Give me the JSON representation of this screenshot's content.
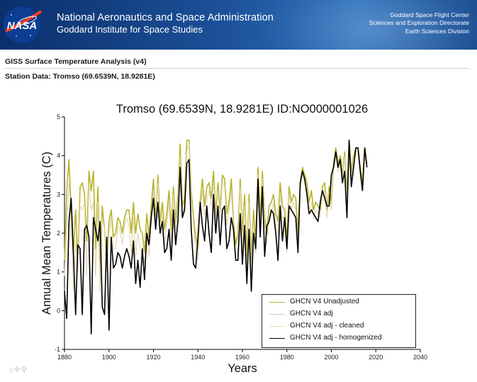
{
  "header": {
    "agency": "National Aeronautics and Space Administration",
    "institute": "Goddard Institute for Space Studies",
    "right_lines": [
      "Goddard Space Flight Center",
      "Sciences and Exploration Directorate",
      "Earth Sciences Division"
    ],
    "logo_text": "NASA"
  },
  "page": {
    "heading": "GISS Surface Temperature Analysis (v4)",
    "station_line": "Station Data: Tromso (69.6539N, 18.9281E)"
  },
  "toolbar": {
    "icons": [
      "home-icon",
      "move-icon",
      "zoom-icon"
    ]
  },
  "chart_data": {
    "type": "line",
    "title": "Tromso (69.6539N, 18.9281E) ID:NO000001026",
    "xlabel": "Years",
    "ylabel": "Annual Mean Temperatures (C)",
    "xlim": [
      1880,
      2040
    ],
    "ylim": [
      -1,
      5
    ],
    "xticks": [
      "1880",
      "1900",
      "1920",
      "1940",
      "1960",
      "1980",
      "2000",
      "2020",
      "2040"
    ],
    "yticks": [
      "-1",
      "0",
      "1",
      "2",
      "3",
      "4",
      "5"
    ],
    "colors": {
      "unadjusted": "#b8b22a",
      "adj": "#c9c9e8",
      "cleaned": "#e6d9a8",
      "homogenized": "#000000"
    },
    "series": [
      {
        "name": "GHCN V4 Unadjusted",
        "color": "#b8b22a",
        "x_start": 1880,
        "values": [
          1.3,
          3.1,
          3.9,
          2.6,
          1.5,
          2.6,
          1.2,
          3.2,
          3.3,
          3.0,
          1.8,
          3.6,
          3.1,
          3.6,
          1.6,
          3.2,
          1.0,
          2.7,
          2.1,
          1.3,
          2.3,
          2.6,
          1.9,
          2.0,
          2.4,
          2.3,
          2.0,
          2.4,
          2.6,
          2.6,
          2.0,
          2.8,
          2.0,
          2.5,
          2.1,
          2.0,
          1.5,
          2.5,
          1.9,
          2.7,
          3.4,
          2.3,
          3.5,
          2.3,
          2.8,
          2.1,
          2.5,
          3.1,
          2.1,
          3.2,
          2.3,
          3.0,
          4.3,
          2.7,
          2.9,
          4.4,
          4.4,
          3.1,
          2.4,
          1.9,
          1.6,
          2.8,
          3.4,
          2.7,
          3.2,
          3.3,
          2.9,
          3.6,
          2.5,
          3.3,
          2.6,
          3.5,
          3.4,
          2.5,
          2.8,
          3.4,
          2.3,
          1.7,
          2.0,
          3.4,
          2.0,
          3.0,
          1.4,
          3.0,
          1.3,
          2.6,
          1.8,
          3.7,
          2.4,
          3.6,
          2.4,
          2.0,
          2.7,
          2.8,
          3.0,
          2.5,
          2.3,
          3.3,
          2.7,
          2.6,
          1.8,
          3.2,
          2.8,
          3.0,
          2.9,
          2.0,
          3.3,
          3.7,
          3.5,
          3.3,
          2.8,
          3.1,
          2.6,
          2.8,
          2.7,
          2.6,
          3.2,
          3.3,
          2.6,
          3.2,
          2.8,
          3.8,
          4.2,
          3.8,
          4.0,
          3.5,
          4.1,
          3.0,
          4.4,
          3.6,
          4.0,
          4.2,
          4.2,
          3.7,
          3.3,
          4.2,
          3.8
        ]
      },
      {
        "name": "GHCN V4 adj",
        "color": "#c9c9e8",
        "x_start": 1880,
        "values": [
          0.9,
          2.2,
          3.3,
          2.4,
          0.5,
          1.8,
          1.0,
          2.7,
          2.6,
          2.8,
          0.9,
          3.3,
          2.6,
          2.8,
          0.9,
          2.8,
          0.5,
          2.4,
          2.1,
          1.0,
          2.0,
          2.4,
          1.6,
          1.6,
          2.2,
          2.1,
          1.7,
          2.2,
          2.4,
          2.2,
          1.5,
          2.4,
          1.4,
          2.0,
          1.6,
          1.5,
          1.2,
          2.1,
          1.4,
          2.4,
          3.1,
          2.1,
          3.3,
          2.0,
          2.5,
          1.7,
          2.2,
          2.8,
          1.8,
          3.0,
          2.1,
          2.8,
          4.0,
          2.5,
          2.7,
          4.1,
          4.3,
          2.9,
          2.2,
          1.5,
          1.3,
          2.5,
          3.1,
          2.4,
          2.9,
          3.1,
          2.7,
          3.3,
          2.3,
          3.1,
          2.4,
          3.3,
          3.2,
          2.2,
          2.6,
          3.1,
          2.1,
          1.3,
          1.6,
          3.2,
          1.6,
          2.7,
          1.0,
          2.8,
          0.9,
          2.3,
          1.5,
          3.5,
          2.2,
          3.4,
          2.2,
          1.7,
          2.4,
          2.5,
          2.8,
          2.2,
          2.0,
          3.0,
          2.4,
          2.4,
          1.5,
          3.0,
          2.6,
          2.8,
          2.6,
          1.7,
          3.1,
          3.5,
          3.3,
          3.1,
          2.6,
          2.8,
          2.4,
          2.6,
          2.5,
          2.4,
          3.0,
          3.1,
          2.4,
          3.0,
          2.6,
          3.6,
          4.1,
          3.6,
          3.8,
          3.4,
          4.0,
          2.8,
          4.3,
          3.4,
          3.9,
          4.1,
          4.1,
          3.5,
          3.1,
          4.1,
          3.7
        ]
      },
      {
        "name": "GHCN V4 adj - cleaned",
        "color": "#e6d9a8",
        "x_start": 1880,
        "values": [
          0.9,
          2.2,
          3.3,
          2.4,
          0.5,
          1.8,
          1.0,
          2.7,
          2.6,
          2.8,
          0.9,
          3.3,
          2.6,
          2.8,
          0.9,
          2.8,
          0.5,
          2.4,
          2.1,
          1.0,
          2.0,
          2.4,
          1.6,
          1.6,
          2.2,
          2.1,
          1.7,
          2.2,
          2.4,
          2.2,
          1.5,
          2.4,
          1.4,
          2.0,
          1.6,
          1.5,
          1.2,
          2.1,
          1.4,
          2.4,
          3.1,
          2.1,
          3.3,
          2.0,
          2.5,
          1.7,
          2.2,
          2.8,
          1.8,
          3.0,
          2.1,
          2.8,
          4.0,
          2.5,
          2.7,
          4.1,
          4.3,
          2.9,
          2.2,
          1.5,
          1.3,
          2.5,
          3.1,
          2.4,
          2.9,
          3.1,
          2.7,
          3.3,
          2.3,
          3.1,
          2.4,
          3.3,
          3.2,
          2.2,
          2.6,
          3.1,
          2.1,
          1.3,
          1.6,
          3.2,
          1.6,
          2.7,
          1.0,
          2.8,
          0.9,
          2.3,
          1.5,
          3.5,
          2.2,
          3.4,
          2.2,
          1.7,
          2.4,
          2.5,
          2.8,
          2.2,
          2.0,
          3.0,
          2.4,
          2.4,
          1.5,
          3.0,
          2.6,
          2.8,
          2.6,
          1.7,
          3.1,
          3.5,
          3.3,
          3.1,
          2.6,
          2.8,
          2.4,
          2.6,
          2.5,
          2.4,
          3.0,
          3.1,
          2.4,
          3.0,
          2.6,
          3.6,
          4.1,
          3.6,
          3.8,
          3.4,
          4.0,
          2.8,
          4.3,
          3.4,
          3.9,
          4.1,
          4.1,
          3.5,
          3.1,
          4.1,
          3.7
        ]
      },
      {
        "name": "GHCN V4 adj - homogenized",
        "color": "#000000",
        "x_start": 1880,
        "values": [
          0.5,
          -0.2,
          2.3,
          2.9,
          1.5,
          -0.1,
          1.7,
          1.6,
          -0.1,
          2.1,
          2.2,
          1.9,
          -0.6,
          2.4,
          2.1,
          1.8,
          2.3,
          0.1,
          -0.1,
          1.9,
          -0.5,
          1.9,
          1.1,
          1.2,
          1.5,
          1.4,
          1.1,
          1.4,
          1.6,
          1.4,
          1.1,
          1.8,
          0.7,
          1.3,
          0.6,
          1.6,
          0.8,
          2.0,
          1.7,
          2.4,
          2.9,
          2.1,
          2.8,
          2.0,
          2.3,
          1.5,
          1.6,
          2.1,
          1.3,
          2.6,
          1.7,
          2.3,
          3.7,
          2.4,
          2.6,
          3.8,
          3.9,
          2.1,
          1.2,
          1.1,
          1.9,
          2.8,
          2.2,
          1.8,
          2.7,
          2.0,
          1.5,
          3.0,
          2.0,
          2.7,
          1.7,
          2.6,
          2.7,
          1.6,
          1.8,
          2.4,
          2.1,
          1.3,
          1.3,
          2.5,
          1.2,
          2.2,
          0.7,
          2.1,
          0.5,
          2.0,
          1.6,
          3.4,
          1.9,
          3.2,
          1.4,
          2.2,
          2.3,
          2.6,
          2.5,
          2.0,
          1.3,
          2.7,
          1.8,
          2.4,
          1.6,
          2.7,
          2.6,
          2.5,
          2.4,
          1.5,
          3.3,
          3.6,
          3.4,
          3.0,
          2.5,
          2.6,
          2.5,
          2.4,
          2.3,
          2.8,
          3.1,
          2.9,
          2.7,
          2.7,
          3.5,
          3.7,
          4.1,
          3.7,
          3.9,
          3.3,
          3.6,
          2.4,
          4.4,
          3.2,
          3.7,
          4.2,
          4.2,
          3.6,
          3.1,
          4.2,
          3.7
        ]
      }
    ],
    "legend": [
      "GHCN V4 Unadjusted",
      "GHCN V4 adj",
      "GHCN V4 adj - cleaned",
      "GHCN V4 adj - homogenized"
    ],
    "legend_position": "bottom-right"
  }
}
